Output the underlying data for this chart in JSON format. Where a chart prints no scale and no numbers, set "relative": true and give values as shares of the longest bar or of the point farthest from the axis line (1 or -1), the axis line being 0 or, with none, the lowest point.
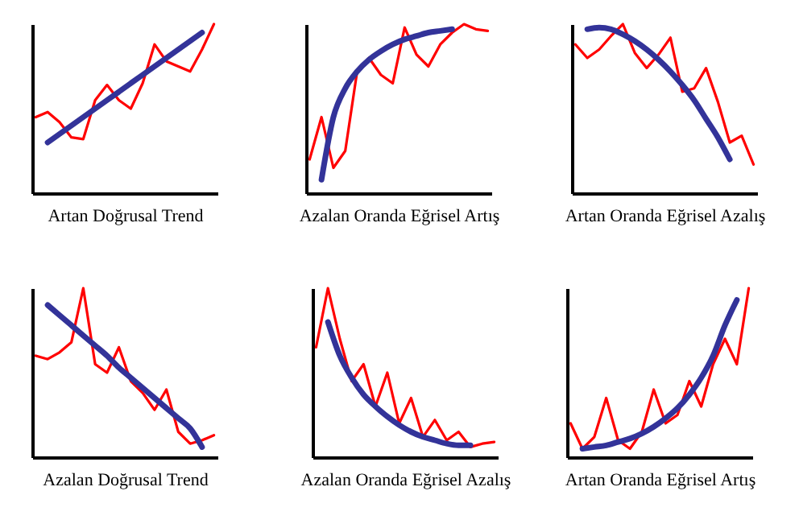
{
  "chart_data": [
    {
      "type": "line",
      "xlabel": "Artan Doğrusal Trend",
      "relative": true,
      "categories": [
        null,
        null,
        null,
        null,
        null,
        null,
        null,
        null,
        null,
        null,
        null,
        null,
        null,
        null,
        null,
        null
      ],
      "series": [
        {
          "color": "#ff0000",
          "values": [
            0.45,
            0.48,
            0.42,
            0.33,
            0.32,
            0.55,
            0.64,
            0.55,
            0.5,
            0.65,
            0.88,
            0.78,
            0.75,
            0.72,
            0.85,
            1.0
          ]
        },
        {
          "color": "#333399",
          "values": [
            null,
            0.3,
            0.35,
            0.4,
            0.45,
            0.5,
            0.55,
            0.6,
            0.65,
            0.7,
            0.75,
            0.8,
            0.85,
            0.9,
            0.95,
            null
          ]
        }
      ]
    },
    {
      "type": "line",
      "xlabel": "Azalan Oranda Eğrisel Artış",
      "relative": true,
      "categories": [
        null,
        null,
        null,
        null,
        null,
        null,
        null,
        null,
        null,
        null,
        null,
        null,
        null,
        null,
        null,
        null
      ],
      "series": [
        {
          "color": "#ff0000",
          "values": [
            0.2,
            0.45,
            0.15,
            0.25,
            0.72,
            0.8,
            0.7,
            0.65,
            0.98,
            0.82,
            0.75,
            0.88,
            0.95,
            1.0,
            0.97,
            0.96
          ]
        },
        {
          "color": "#333399",
          "values": [
            null,
            0.08,
            0.45,
            0.62,
            0.72,
            0.79,
            0.84,
            0.88,
            0.91,
            0.93,
            0.95,
            0.96,
            0.97,
            null,
            null,
            null
          ]
        }
      ]
    },
    {
      "type": "line",
      "xlabel": "Artan Oranda Eğrisel Azalış",
      "relative": true,
      "categories": [
        null,
        null,
        null,
        null,
        null,
        null,
        null,
        null,
        null,
        null,
        null,
        null,
        null,
        null,
        null,
        null
      ],
      "series": [
        {
          "color": "#ff0000",
          "values": [
            0.88,
            0.8,
            0.85,
            0.93,
            1.0,
            0.83,
            0.74,
            0.82,
            0.92,
            0.6,
            0.62,
            0.74,
            0.54,
            0.3,
            0.34,
            0.17
          ]
        },
        {
          "color": "#333399",
          "values": [
            null,
            0.97,
            0.98,
            0.97,
            0.94,
            0.9,
            0.85,
            0.79,
            0.72,
            0.64,
            0.55,
            0.44,
            0.33,
            0.2,
            null,
            null
          ]
        }
      ]
    },
    {
      "type": "line",
      "xlabel": "Azalan Doğrusal Trend",
      "relative": true,
      "categories": [
        null,
        null,
        null,
        null,
        null,
        null,
        null,
        null,
        null,
        null,
        null,
        null,
        null,
        null,
        null,
        null
      ],
      "series": [
        {
          "color": "#ff0000",
          "values": [
            0.6,
            0.58,
            0.62,
            0.68,
            1.0,
            0.55,
            0.5,
            0.65,
            0.45,
            0.38,
            0.28,
            0.4,
            0.15,
            0.08,
            0.1,
            0.13
          ]
        },
        {
          "color": "#333399",
          "values": [
            null,
            0.9,
            0.84,
            0.78,
            0.72,
            0.66,
            0.6,
            0.53,
            0.47,
            0.41,
            0.35,
            0.29,
            0.23,
            0.17,
            0.06,
            null
          ]
        }
      ]
    },
    {
      "type": "line",
      "xlabel": "Azalan Oranda Eğrisel Azalış",
      "relative": true,
      "categories": [
        null,
        null,
        null,
        null,
        null,
        null,
        null,
        null,
        null,
        null,
        null,
        null,
        null,
        null,
        null,
        null
      ],
      "series": [
        {
          "color": "#ff0000",
          "values": [
            0.65,
            1.0,
            0.7,
            0.45,
            0.55,
            0.3,
            0.5,
            0.2,
            0.35,
            0.12,
            0.22,
            0.1,
            0.15,
            0.06,
            0.08,
            0.09
          ]
        },
        {
          "color": "#333399",
          "values": [
            null,
            0.8,
            0.6,
            0.47,
            0.37,
            0.3,
            0.24,
            0.19,
            0.15,
            0.12,
            0.1,
            0.08,
            0.07,
            0.07,
            null,
            null
          ]
        }
      ]
    },
    {
      "type": "line",
      "xlabel": "Artan Oranda Eğrisel Artış",
      "relative": true,
      "categories": [
        null,
        null,
        null,
        null,
        null,
        null,
        null,
        null,
        null,
        null,
        null,
        null,
        null,
        null,
        null,
        null
      ],
      "series": [
        {
          "color": "#ff0000",
          "values": [
            0.2,
            0.05,
            0.12,
            0.35,
            0.1,
            0.05,
            0.15,
            0.4,
            0.2,
            0.25,
            0.45,
            0.3,
            0.55,
            0.7,
            0.55,
            1.0
          ]
        },
        {
          "color": "#333399",
          "values": [
            null,
            0.05,
            0.06,
            0.07,
            0.09,
            0.11,
            0.14,
            0.18,
            0.23,
            0.29,
            0.37,
            0.47,
            0.6,
            0.78,
            0.93,
            null
          ]
        }
      ]
    }
  ]
}
